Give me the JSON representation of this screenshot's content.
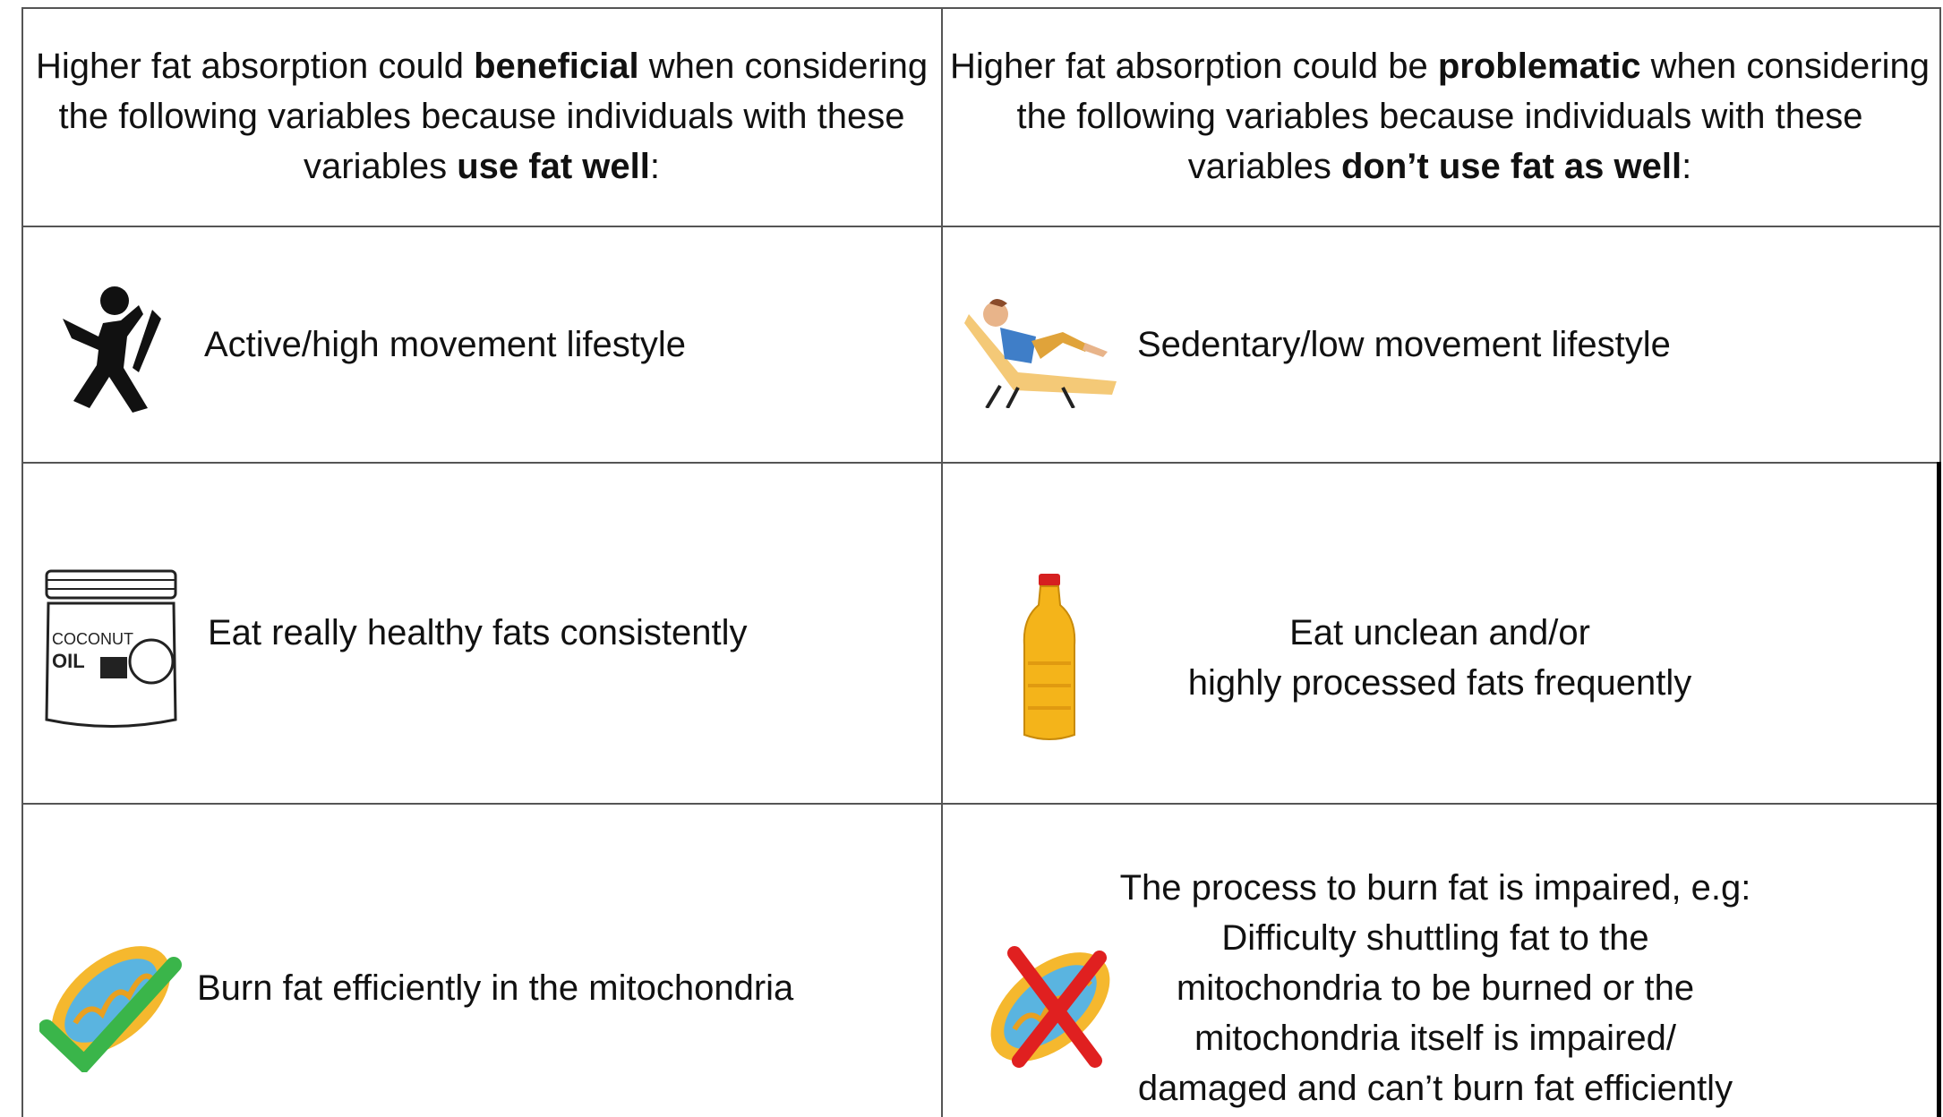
{
  "table": {
    "header": [
      {
        "segments": [
          {
            "text": "Higher fat absorption could ",
            "bold": false
          },
          {
            "text": "beneficial",
            "bold": true
          },
          {
            "text": " when considering the following variables  because individuals with these variables ",
            "bold": false
          },
          {
            "text": "use fat well",
            "bold": true
          },
          {
            "text": ":",
            "bold": false
          }
        ]
      },
      {
        "segments": [
          {
            "text": "Higher fat absorption could be ",
            "bold": false
          },
          {
            "text": "problematic",
            "bold": true
          },
          {
            "text": " when considering the following variables because individuals with these variables ",
            "bold": false
          },
          {
            "text": "don’t use fat as well",
            "bold": true
          },
          {
            "text": ":",
            "bold": false
          }
        ]
      }
    ],
    "rows": [
      {
        "left": {
          "lines": [
            "Active/high movement lifestyle"
          ]
        },
        "right": {
          "lines": [
            "Sedentary/low movement lifestyle"
          ]
        }
      },
      {
        "left": {
          "lines": [
            "Eat really healthy fats consistently"
          ]
        },
        "right": {
          "lines": [
            "Eat unclean and/or",
            "highly processed fats frequently"
          ]
        }
      },
      {
        "left": {
          "lines": [
            "Burn fat efficiently in the mitochondria"
          ]
        },
        "right": {
          "lines": [
            "The process to burn fat is impaired, e.g:",
            "Difficulty shuttling fat to the",
            "mitochondria to be burned or the",
            "mitochondria itself is impaired/",
            "damaged and can’t burn fat efficiently"
          ]
        }
      }
    ]
  }
}
